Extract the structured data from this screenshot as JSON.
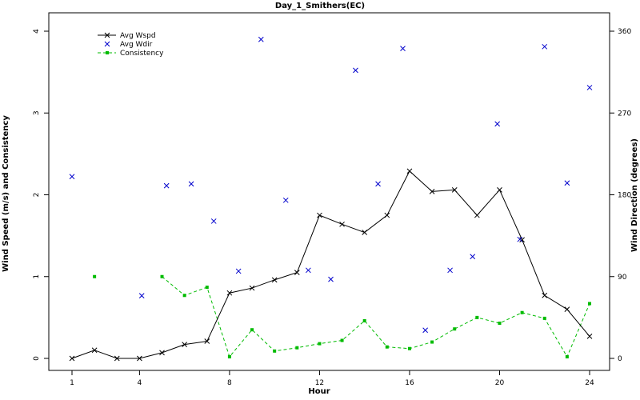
{
  "chart_data": {
    "type": "line",
    "title": "Day_1_Smithers(EC)",
    "xlabel": "Hour",
    "ylabel_left": "Wind Speed (m/s) and Consistency",
    "ylabel_right": "Wind Direction (degrees)",
    "xlim": [
      0,
      25
    ],
    "ylim_left": [
      0,
      4
    ],
    "ylim_right": [
      0,
      360
    ],
    "x_ticks": [
      "1",
      "4",
      "8",
      "12",
      "16",
      "20",
      "24"
    ],
    "y_left_ticks": [
      "0",
      "1",
      "2",
      "3",
      "4"
    ],
    "y_right_ticks": [
      "0",
      "90",
      "180",
      "270",
      "360"
    ],
    "legend_position": "top-left",
    "series": [
      {
        "name": "Avg Wspd",
        "color": "#000000",
        "marker": "x",
        "line": "solid",
        "axis": "left",
        "x": [
          1,
          2,
          3,
          4,
          5,
          6,
          7,
          8,
          9,
          10,
          11,
          12,
          13,
          14,
          15,
          16,
          17,
          18,
          19,
          20,
          21,
          22,
          23,
          24
        ],
        "y": [
          0.0,
          0.1,
          0.0,
          0.0,
          0.07,
          0.17,
          0.21,
          0.8,
          0.86,
          0.96,
          1.05,
          1.75,
          1.64,
          1.54,
          1.75,
          2.29,
          2.04,
          2.06,
          1.75,
          2.06,
          1.45,
          0.77,
          0.6,
          0.27
        ]
      },
      {
        "name": "Avg Wdir",
        "color": "#0000cc",
        "marker": "x",
        "line": "none",
        "axis": "right",
        "x": [
          1,
          4.1,
          5.2,
          6.3,
          7.3,
          8.4,
          9.4,
          10.5,
          11.5,
          12.5,
          13.6,
          14.6,
          15.7,
          16.7,
          17.8,
          18.8,
          19.9,
          20.9,
          22.0,
          23.0,
          24.0
        ],
        "y": [
          200,
          69,
          190,
          192,
          151,
          96,
          351,
          174,
          97,
          87,
          317,
          192,
          341,
          31,
          97,
          112,
          258,
          131,
          343,
          193,
          298
        ]
      },
      {
        "name": "Consistency",
        "color": "#00bb00",
        "marker": "square",
        "line": "dashed",
        "axis": "left",
        "segments": [
          {
            "x": [
              2
            ],
            "y": [
              1.0
            ]
          },
          {
            "x": [
              5,
              6,
              7,
              8,
              9,
              10,
              11,
              12,
              13,
              14,
              15,
              16,
              17,
              18,
              19,
              20,
              21,
              22,
              23,
              24
            ],
            "y": [
              1.0,
              0.77,
              0.87,
              0.02,
              0.35,
              0.09,
              0.13,
              0.18,
              0.22,
              0.46,
              0.14,
              0.12,
              0.2,
              0.36,
              0.5,
              0.43,
              0.56,
              0.49,
              0.02,
              0.67
            ]
          }
        ]
      }
    ]
  }
}
